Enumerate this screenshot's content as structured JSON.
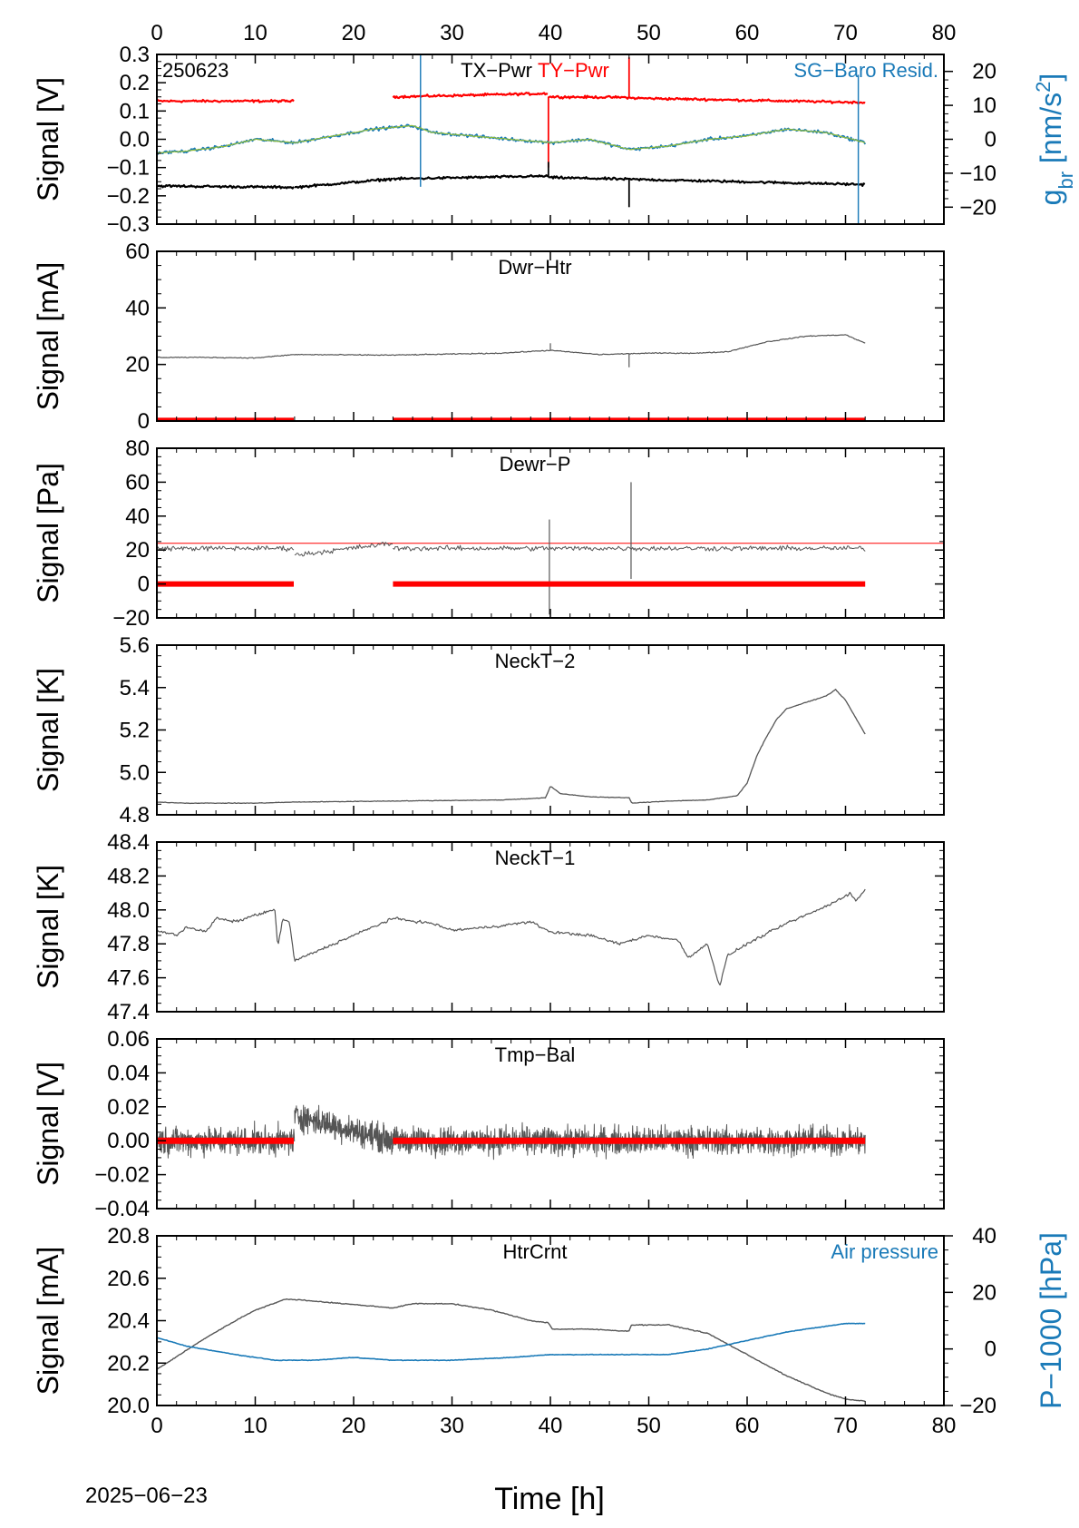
{
  "figure": {
    "date_label": "2025−06−23",
    "xlabel": "Time [h]",
    "xlim": [
      0,
      80
    ],
    "x_ticks": [
      0,
      10,
      20,
      30,
      40,
      50,
      60,
      70,
      80
    ],
    "x_tick_labels": [
      "0",
      "10",
      "20",
      "30",
      "40",
      "50",
      "60",
      "70",
      "80"
    ],
    "top_axis_ticks": true,
    "bottom_axis_ticks": true
  },
  "colors": {
    "black": "#000000",
    "gray": "#555555",
    "red": "#ff0000",
    "blue": "#1a7ab8",
    "green": "#8fbc3a"
  },
  "chart_data": [
    {
      "type": "line",
      "name": "panel-tx-ty-pwr",
      "station_label": "250623",
      "titles": [
        {
          "text": "TX−Pwr",
          "color": "#000000"
        },
        {
          "text": "TY−Pwr",
          "color": "#ff0000"
        }
      ],
      "right_title": {
        "text": "SG−Baro Resid.",
        "color": "#1a7ab8"
      },
      "ylabel": "Signal [V]",
      "ylim": [
        -0.3,
        0.3
      ],
      "y_ticks": [
        -0.3,
        -0.2,
        -0.1,
        0.0,
        0.1,
        0.2,
        0.3
      ],
      "y_tick_labels": [
        "−0.3",
        "−0.2",
        "−0.1",
        "0.0",
        "0.1",
        "0.2",
        "0.3"
      ],
      "y2label_main": "g",
      "y2label_sub": "br",
      "y2label_rest": " [nm/s",
      "y2label_sup": "2",
      "y2label_end": "]",
      "y2lim": [
        -25,
        25
      ],
      "y2_ticks": [
        -20,
        -10,
        0,
        10,
        20
      ],
      "y2_tick_labels": [
        "−20",
        "−10",
        "0",
        "10",
        "20"
      ],
      "series": [
        {
          "axis": "left",
          "color": "#ff0000",
          "width": 2.2,
          "noise": 0.006,
          "segments": [
            {
              "x": [
                0,
                14
              ],
              "y": [
                0.135,
                0.135
              ]
            },
            {
              "x": [
                24,
                39.8
              ],
              "y": [
                0.15,
                0.162
              ]
            },
            {
              "x": [
                39.8,
                48
              ],
              "y": [
                0.15,
                0.148
              ]
            },
            {
              "x": [
                48,
                72
              ],
              "y": [
                0.146,
                0.13
              ]
            }
          ],
          "spikes": [
            [
              39.8,
              -0.1
            ],
            [
              48,
              0.29
            ]
          ]
        },
        {
          "axis": "left",
          "color": "#000000",
          "width": 2.2,
          "noise": 0.006,
          "segments": [
            {
              "x": [
                0,
                14
              ],
              "y": [
                -0.165,
                -0.17
              ]
            },
            {
              "x": [
                14,
                24
              ],
              "y": [
                -0.17,
                -0.14
              ]
            },
            {
              "x": [
                24,
                39.8
              ],
              "y": [
                -0.14,
                -0.13
              ]
            },
            {
              "x": [
                39.8,
                72
              ],
              "y": [
                -0.135,
                -0.16
              ]
            }
          ],
          "spikes": [
            [
              39.8,
              -0.08
            ],
            [
              48,
              -0.24
            ]
          ]
        },
        {
          "axis": "right",
          "color": "#1a7ab8",
          "width": 1.8,
          "noise": 0.7,
          "x": [
            0,
            3,
            7,
            10,
            14,
            18,
            22,
            26,
            28,
            32,
            36,
            40,
            44,
            48,
            52,
            56,
            60,
            64,
            68,
            72
          ],
          "y": [
            -4,
            -3.5,
            -2,
            0,
            -1,
            1,
            3,
            4,
            2,
            1,
            0,
            -1,
            0,
            -3,
            -2,
            0,
            1,
            3,
            2,
            -1
          ],
          "spikes": [
            [
              26.8,
              28
            ],
            [
              26.8,
              -14
            ],
            [
              71.3,
              19
            ],
            [
              71.3,
              -28
            ]
          ]
        },
        {
          "axis": "right",
          "color": "#8fbc3a",
          "width": 1.2,
          "noise": 0.2,
          "x": [
            0,
            3,
            7,
            10,
            14,
            18,
            22,
            26,
            28,
            32,
            36,
            40,
            44,
            48,
            52,
            56,
            60,
            64,
            68,
            72
          ],
          "y": [
            -4,
            -3.5,
            -2,
            0,
            -1,
            1,
            3,
            4,
            2,
            1,
            0,
            -1,
            0,
            -3,
            -2,
            0,
            1,
            3,
            2,
            -1
          ]
        }
      ]
    },
    {
      "type": "line",
      "name": "panel-dwr-htr",
      "titles": [
        {
          "text": "Dwr−Htr",
          "color": "#000000"
        }
      ],
      "ylabel": "Signal [mA]",
      "ylim": [
        0,
        60
      ],
      "y_ticks": [
        0,
        20,
        40,
        60
      ],
      "y_tick_labels": [
        "0",
        "20",
        "40",
        "60"
      ],
      "series": [
        {
          "axis": "left",
          "color": "#555555",
          "width": 1.2,
          "noise": 0.25,
          "x": [
            0,
            5,
            10,
            14,
            24,
            35,
            40,
            45,
            50,
            55,
            58,
            62,
            66,
            70,
            72
          ],
          "y": [
            22.5,
            22.5,
            22.3,
            23.5,
            23.3,
            24,
            25,
            23.5,
            24,
            24,
            24.5,
            28,
            30,
            30.5,
            27.5
          ],
          "spikes": [
            [
              40,
              27.5
            ],
            [
              48,
              19
            ]
          ]
        },
        {
          "axis": "left",
          "color": "#ff0000",
          "width": 4,
          "noise": 0,
          "segments": [
            {
              "x": [
                0,
                14
              ],
              "y": [
                0.5,
                0.5
              ]
            },
            {
              "x": [
                24,
                72
              ],
              "y": [
                0.5,
                0.5
              ]
            }
          ]
        }
      ]
    },
    {
      "type": "line",
      "name": "panel-dewr-p",
      "titles": [
        {
          "text": "Dewr−P",
          "color": "#000000"
        }
      ],
      "ylabel": "Signal [Pa]",
      "ylim": [
        -20,
        80
      ],
      "y_ticks": [
        -20,
        0,
        20,
        40,
        60,
        80
      ],
      "y_tick_labels": [
        "−20",
        "0",
        "20",
        "40",
        "60",
        "80"
      ],
      "hline": {
        "y": 24,
        "color": "#ff0000"
      },
      "series": [
        {
          "axis": "left",
          "color": "#555555",
          "width": 1,
          "noise": 2.2,
          "segments": [
            {
              "x": [
                0,
                14
              ],
              "y": [
                21,
                21
              ]
            },
            {
              "x": [
                14,
                24
              ],
              "y": [
                17,
                24
              ]
            },
            {
              "x": [
                24,
                72
              ],
              "y": [
                21,
                21
              ]
            }
          ],
          "spikes": [
            [
              39.9,
              38
            ],
            [
              39.9,
              -18
            ],
            [
              48.2,
              60
            ],
            [
              48.2,
              3
            ]
          ]
        },
        {
          "axis": "left",
          "color": "#ff0000",
          "width": 6,
          "noise": 0,
          "segments": [
            {
              "x": [
                0,
                14
              ],
              "y": [
                0,
                0
              ]
            },
            {
              "x": [
                24,
                72
              ],
              "y": [
                0,
                0
              ]
            }
          ]
        }
      ]
    },
    {
      "type": "line",
      "name": "panel-neckt-2",
      "titles": [
        {
          "text": "NeckT−2",
          "color": "#000000"
        }
      ],
      "ylabel": "Signal [K]",
      "ylim": [
        4.8,
        5.6
      ],
      "y_ticks": [
        4.8,
        5.0,
        5.2,
        5.4,
        5.6
      ],
      "y_tick_labels": [
        "4.8",
        "5.0",
        "5.2",
        "5.4",
        "5.6"
      ],
      "series": [
        {
          "axis": "left",
          "color": "#555555",
          "width": 1.3,
          "noise": 0.002,
          "x": [
            0,
            3,
            10,
            14,
            24,
            35,
            39.5,
            40,
            41,
            44,
            48,
            48.3,
            52,
            56,
            59,
            60,
            61,
            62,
            63,
            64,
            66,
            68,
            69,
            70,
            72
          ],
          "y": [
            4.86,
            4.855,
            4.855,
            4.86,
            4.865,
            4.87,
            4.88,
            4.935,
            4.9,
            4.885,
            4.88,
            4.855,
            4.865,
            4.87,
            4.89,
            4.95,
            5.08,
            5.17,
            5.25,
            5.3,
            5.33,
            5.36,
            5.39,
            5.34,
            5.18
          ]
        }
      ]
    },
    {
      "type": "line",
      "name": "panel-neckt-1",
      "titles": [
        {
          "text": "NeckT−1",
          "color": "#000000"
        }
      ],
      "ylabel": "Signal [K]",
      "ylim": [
        47.4,
        48.4
      ],
      "y_ticks": [
        47.4,
        47.6,
        47.8,
        48.0,
        48.2,
        48.4
      ],
      "y_tick_labels": [
        "47.4",
        "47.6",
        "47.8",
        "48.0",
        "48.2",
        "48.4"
      ],
      "series": [
        {
          "axis": "left",
          "color": "#555555",
          "width": 1.2,
          "noise": 0.012,
          "x": [
            0,
            2,
            3,
            5,
            6,
            8,
            10,
            12,
            12.3,
            12.8,
            13.5,
            14,
            24,
            28,
            30,
            34,
            38,
            40,
            44,
            47,
            50,
            53,
            54,
            56,
            57.2,
            58,
            60,
            64,
            68,
            70.5,
            71,
            72
          ],
          "y": [
            47.88,
            47.85,
            47.9,
            47.87,
            47.95,
            47.93,
            47.97,
            48.0,
            47.78,
            47.95,
            47.92,
            47.7,
            47.95,
            47.92,
            47.88,
            47.9,
            47.93,
            47.87,
            47.85,
            47.8,
            47.85,
            47.82,
            47.72,
            47.8,
            47.55,
            47.73,
            47.8,
            47.92,
            48.02,
            48.1,
            48.05,
            48.12
          ]
        }
      ]
    },
    {
      "type": "line",
      "name": "panel-tmp-bal",
      "titles": [
        {
          "text": "Tmp−Bal",
          "color": "#000000"
        }
      ],
      "ylabel": "Signal [V]",
      "ylim": [
        -0.04,
        0.06
      ],
      "y_ticks": [
        -0.04,
        -0.02,
        0.0,
        0.02,
        0.04,
        0.06
      ],
      "y_tick_labels": [
        "−0.04",
        "−0.02",
        "0.00",
        "0.02",
        "0.04",
        "0.06"
      ],
      "series": [
        {
          "axis": "left",
          "color": "#555555",
          "width": 1,
          "noise": 0.012,
          "dense": true,
          "segments": [
            {
              "x": [
                0,
                14
              ],
              "y": [
                0,
                0
              ]
            },
            {
              "x": [
                14,
                24
              ],
              "y": [
                0.015,
                0.0
              ]
            },
            {
              "x": [
                24,
                72
              ],
              "y": [
                0,
                0
              ]
            }
          ]
        },
        {
          "axis": "left",
          "color": "#ff0000",
          "width": 7,
          "noise": 0,
          "segments": [
            {
              "x": [
                0,
                14
              ],
              "y": [
                0,
                0
              ]
            },
            {
              "x": [
                24,
                72
              ],
              "y": [
                0,
                0
              ]
            }
          ]
        }
      ]
    },
    {
      "type": "line",
      "name": "panel-htrcrnt",
      "titles": [
        {
          "text": "HtrCrnt",
          "color": "#000000"
        }
      ],
      "right_title": {
        "text": "Air pressure",
        "color": "#1a7ab8"
      },
      "ylabel": "Signal [mA]",
      "ylim": [
        20.0,
        20.8
      ],
      "y_ticks": [
        20.0,
        20.2,
        20.4,
        20.6,
        20.8
      ],
      "y_tick_labels": [
        "20.0",
        "20.2",
        "20.4",
        "20.6",
        "20.8"
      ],
      "y2label": "P−1000 [hPa]",
      "y2lim": [
        -20,
        40
      ],
      "y2_ticks": [
        -20,
        0,
        20,
        40
      ],
      "y2_tick_labels": [
        "−20",
        "0",
        "20",
        "40"
      ],
      "series": [
        {
          "axis": "left",
          "color": "#555555",
          "width": 1.4,
          "noise": 0.003,
          "x": [
            0,
            2,
            5,
            8,
            10,
            13,
            14,
            24,
            26,
            30,
            34,
            38,
            39.8,
            40.2,
            44,
            48,
            48.2,
            52,
            56,
            60,
            64,
            68,
            70,
            72
          ],
          "y": [
            20.17,
            20.23,
            20.32,
            20.4,
            20.45,
            20.5,
            20.5,
            20.46,
            20.48,
            20.48,
            20.45,
            20.4,
            20.39,
            20.36,
            20.36,
            20.35,
            20.38,
            20.38,
            20.34,
            20.24,
            20.14,
            20.06,
            20.03,
            20.02
          ]
        },
        {
          "axis": "right",
          "color": "#1a7ab8",
          "width": 1.6,
          "noise": 0.15,
          "x": [
            0,
            3,
            8,
            12,
            16,
            20,
            24,
            30,
            36,
            40,
            44,
            48,
            52,
            56,
            60,
            64,
            68,
            70,
            72
          ],
          "y": [
            4,
            1,
            -2,
            -4,
            -4,
            -3,
            -4,
            -4,
            -3,
            -2,
            -2,
            -2,
            -2,
            0,
            3,
            6,
            8,
            9,
            9
          ]
        }
      ]
    }
  ]
}
